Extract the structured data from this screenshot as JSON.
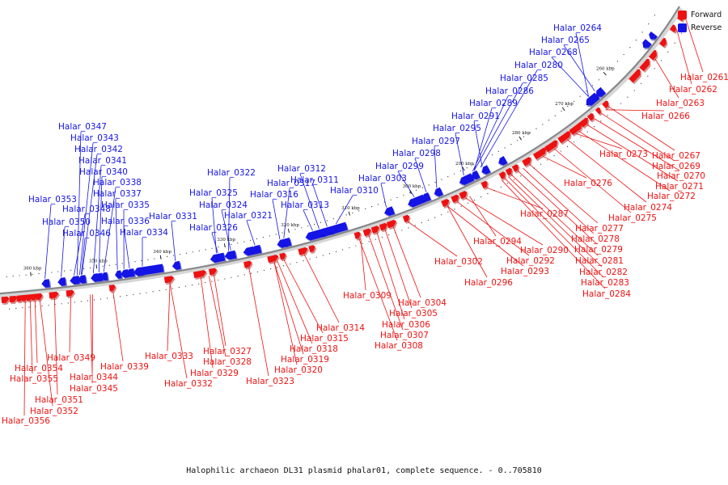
{
  "colors": {
    "forward": "#ee1111",
    "reverse": "#1414e6",
    "forward_dark": "#a00000",
    "reverse_dark": "#000090",
    "backbone": "#888888"
  },
  "legend": {
    "forward": "Forward",
    "reverse": "Reverse"
  },
  "caption": "Halophilic archaeon DL31 plasmid phalar01, complete sequence. - 0..705810",
  "ticks": [
    "260 kbp",
    "270 kbp",
    "280 kbp",
    "290 kbp",
    "300 kbp",
    "310 kbp",
    "320 kbp",
    "330 kbp",
    "340 kbp",
    "350 kbp",
    "360 kbp"
  ],
  "labels": [
    {
      "name": "Halar_0264",
      "strand": "reverse"
    },
    {
      "name": "Halar_0265",
      "strand": "reverse"
    },
    {
      "name": "Halar_0268",
      "strand": "reverse"
    },
    {
      "name": "Halar_0280",
      "strand": "reverse"
    },
    {
      "name": "Halar_0285",
      "strand": "reverse"
    },
    {
      "name": "Halar_0286",
      "strand": "reverse"
    },
    {
      "name": "Halar_0289",
      "strand": "reverse"
    },
    {
      "name": "Halar_0291",
      "strand": "reverse"
    },
    {
      "name": "Halar_0295",
      "strand": "reverse"
    },
    {
      "name": "Halar_0297",
      "strand": "reverse"
    },
    {
      "name": "Halar_0298",
      "strand": "reverse"
    },
    {
      "name": "Halar_0299",
      "strand": "reverse"
    },
    {
      "name": "Halar_0303",
      "strand": "reverse"
    },
    {
      "name": "Halar_0312",
      "strand": "reverse"
    },
    {
      "name": "Halar_0311",
      "strand": "reverse"
    },
    {
      "name": "Halar_0310",
      "strand": "reverse"
    },
    {
      "name": "Halar_0317",
      "strand": "reverse"
    },
    {
      "name": "Halar_0316",
      "strand": "reverse"
    },
    {
      "name": "Halar_0313",
      "strand": "reverse"
    },
    {
      "name": "Halar_0322",
      "strand": "reverse"
    },
    {
      "name": "Halar_0325",
      "strand": "reverse"
    },
    {
      "name": "Halar_0324",
      "strand": "reverse"
    },
    {
      "name": "Halar_0321",
      "strand": "reverse"
    },
    {
      "name": "Halar_0326",
      "strand": "reverse"
    },
    {
      "name": "Halar_0331",
      "strand": "reverse"
    },
    {
      "name": "Halar_0347",
      "strand": "reverse"
    },
    {
      "name": "Halar_0343",
      "strand": "reverse"
    },
    {
      "name": "Halar_0342",
      "strand": "reverse"
    },
    {
      "name": "Halar_0341",
      "strand": "reverse"
    },
    {
      "name": "Halar_0340",
      "strand": "reverse"
    },
    {
      "name": "Halar_0338",
      "strand": "reverse"
    },
    {
      "name": "Halar_0337",
      "strand": "reverse"
    },
    {
      "name": "Halar_0335",
      "strand": "reverse"
    },
    {
      "name": "Halar_0336",
      "strand": "reverse"
    },
    {
      "name": "Halar_0334",
      "strand": "reverse"
    },
    {
      "name": "Halar_0353",
      "strand": "reverse"
    },
    {
      "name": "Halar_0348",
      "strand": "reverse"
    },
    {
      "name": "Halar_0350",
      "strand": "reverse"
    },
    {
      "name": "Halar_0346",
      "strand": "reverse"
    },
    {
      "name": "Halar_0261",
      "strand": "forward"
    },
    {
      "name": "Halar_0262",
      "strand": "forward"
    },
    {
      "name": "Halar_0263",
      "strand": "forward"
    },
    {
      "name": "Halar_0266",
      "strand": "forward"
    },
    {
      "name": "Halar_0267",
      "strand": "forward"
    },
    {
      "name": "Halar_0269",
      "strand": "forward"
    },
    {
      "name": "Halar_0270",
      "strand": "forward"
    },
    {
      "name": "Halar_0271",
      "strand": "forward"
    },
    {
      "name": "Halar_0272",
      "strand": "forward"
    },
    {
      "name": "Halar_0273",
      "strand": "forward"
    },
    {
      "name": "Halar_0274",
      "strand": "forward"
    },
    {
      "name": "Halar_0275",
      "strand": "forward"
    },
    {
      "name": "Halar_0276",
      "strand": "forward"
    },
    {
      "name": "Halar_0277",
      "strand": "forward"
    },
    {
      "name": "Halar_0278",
      "strand": "forward"
    },
    {
      "name": "Halar_0279",
      "strand": "forward"
    },
    {
      "name": "Halar_0281",
      "strand": "forward"
    },
    {
      "name": "Halar_0282",
      "strand": "forward"
    },
    {
      "name": "Halar_0283",
      "strand": "forward"
    },
    {
      "name": "Halar_0284",
      "strand": "forward"
    },
    {
      "name": "Halar_0287",
      "strand": "forward"
    },
    {
      "name": "Halar_0290",
      "strand": "forward"
    },
    {
      "name": "Halar_0292",
      "strand": "forward"
    },
    {
      "name": "Halar_0293",
      "strand": "forward"
    },
    {
      "name": "Halar_0294",
      "strand": "forward"
    },
    {
      "name": "Halar_0296",
      "strand": "forward"
    },
    {
      "name": "Halar_0302",
      "strand": "forward"
    },
    {
      "name": "Halar_0304",
      "strand": "forward"
    },
    {
      "name": "Halar_0305",
      "strand": "forward"
    },
    {
      "name": "Halar_0306",
      "strand": "forward"
    },
    {
      "name": "Halar_0307",
      "strand": "forward"
    },
    {
      "name": "Halar_0308",
      "strand": "forward"
    },
    {
      "name": "Halar_0309",
      "strand": "forward"
    },
    {
      "name": "Halar_0314",
      "strand": "forward"
    },
    {
      "name": "Halar_0315",
      "strand": "forward"
    },
    {
      "name": "Halar_0318",
      "strand": "forward"
    },
    {
      "name": "Halar_0319",
      "strand": "forward"
    },
    {
      "name": "Halar_0320",
      "strand": "forward"
    },
    {
      "name": "Halar_0323",
      "strand": "forward"
    },
    {
      "name": "Halar_0327",
      "strand": "forward"
    },
    {
      "name": "Halar_0328",
      "strand": "forward"
    },
    {
      "name": "Halar_0329",
      "strand": "forward"
    },
    {
      "name": "Halar_0332",
      "strand": "forward"
    },
    {
      "name": "Halar_0333",
      "strand": "forward"
    },
    {
      "name": "Halar_0339",
      "strand": "forward"
    },
    {
      "name": "Halar_0349",
      "strand": "forward"
    },
    {
      "name": "Halar_0354",
      "strand": "forward"
    },
    {
      "name": "Halar_0355",
      "strand": "forward"
    },
    {
      "name": "Halar_0344",
      "strand": "forward"
    },
    {
      "name": "Halar_0345",
      "strand": "forward"
    },
    {
      "name": "Halar_0351",
      "strand": "forward"
    },
    {
      "name": "Halar_0352",
      "strand": "forward"
    },
    {
      "name": "Halar_0356",
      "strand": "forward"
    }
  ]
}
